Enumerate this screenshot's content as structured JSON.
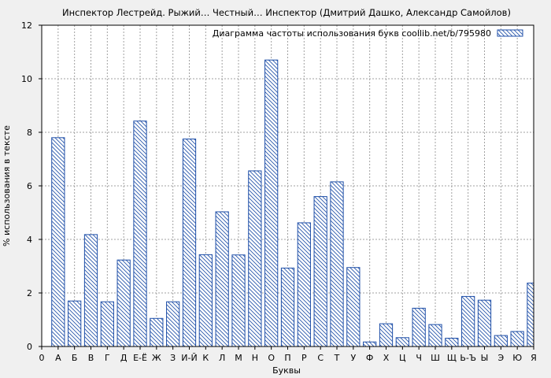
{
  "chart_data": {
    "type": "bar",
    "title": "Инспектор Лестрейд. Рыжий… Честный… Инспектор (Дмитрий Дашко, Александр Самойлов)",
    "xlabel": "Буквы",
    "ylabel": "% использования в тексте",
    "legend": "Диаграмма частоты использования букв coollib.net/b/795980",
    "legend_position": "top-right",
    "ylim": [
      0,
      12
    ],
    "yticks": [
      "0",
      "2",
      "4",
      "6",
      "8",
      "10",
      "12"
    ],
    "grid": true,
    "xtick_first": "0",
    "categories": [
      "А",
      "Б",
      "В",
      "Г",
      "Д",
      "Е-Ё",
      "Ж",
      "З",
      "И-Й",
      "К",
      "Л",
      "М",
      "Н",
      "О",
      "П",
      "Р",
      "С",
      "Т",
      "У",
      "Ф",
      "Х",
      "Ц",
      "Ч",
      "Ш",
      "Щ",
      "Ь-Ъ",
      "Ы",
      "Э",
      "Ю",
      "Я"
    ],
    "values": [
      7.8,
      1.7,
      4.18,
      1.67,
      3.23,
      8.42,
      1.05,
      1.67,
      7.75,
      3.43,
      5.03,
      3.42,
      6.56,
      10.7,
      2.93,
      4.62,
      5.6,
      6.15,
      2.95,
      0.17,
      0.85,
      0.33,
      1.43,
      0.82,
      0.31,
      1.87,
      1.73,
      0.41,
      0.56,
      2.37
    ],
    "colors": {
      "bar": "#1f4fa8",
      "background": "#f0f0f0",
      "grid": "#a0a0a0"
    }
  }
}
